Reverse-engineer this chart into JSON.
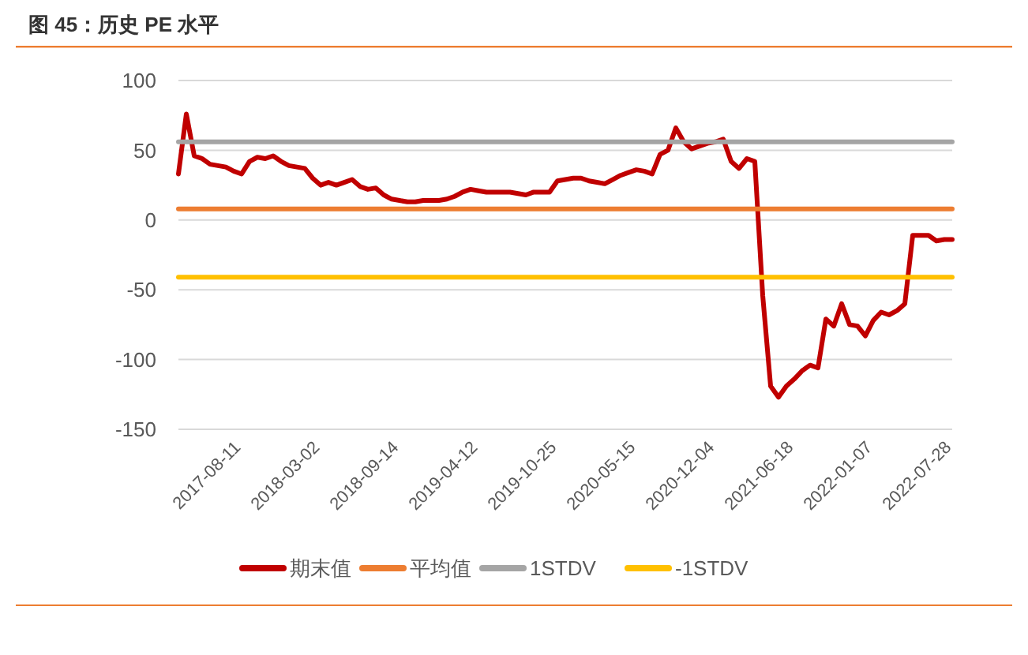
{
  "chart_data": {
    "type": "line",
    "title": "图 45：历史 PE 水平",
    "categories": [
      null,
      null,
      null,
      null,
      null,
      null,
      null,
      null,
      "2017-08-11",
      null,
      null,
      null,
      null,
      null,
      null,
      null,
      null,
      null,
      "2018-03-02",
      null,
      null,
      null,
      null,
      null,
      null,
      null,
      null,
      null,
      "2018-09-14",
      null,
      null,
      null,
      null,
      null,
      null,
      null,
      null,
      null,
      "2019-04-12",
      null,
      null,
      null,
      null,
      null,
      null,
      null,
      null,
      null,
      "2019-10-25",
      null,
      null,
      null,
      null,
      null,
      null,
      null,
      null,
      null,
      "2020-05-15",
      null,
      null,
      null,
      null,
      null,
      null,
      null,
      null,
      null,
      "2020-12-04",
      null,
      null,
      null,
      null,
      null,
      null,
      null,
      null,
      null,
      "2021-06-18",
      null,
      null,
      null,
      null,
      null,
      null,
      null,
      null,
      null,
      "2022-01-07",
      null,
      null,
      null,
      null,
      null,
      null,
      null,
      null,
      null,
      "2022-07-28"
    ],
    "series": [
      {
        "name": "期末值",
        "color": "#c00000",
        "values": [
          33,
          76,
          46,
          44,
          40,
          39,
          38,
          35,
          33,
          42,
          45,
          44,
          46,
          42,
          39,
          38,
          37,
          30,
          25,
          27,
          25,
          27,
          29,
          24,
          22,
          23,
          18,
          15,
          14,
          13,
          13,
          14,
          14,
          14,
          15,
          17,
          20,
          22,
          21,
          20,
          20,
          20,
          20,
          19,
          18,
          20,
          20,
          20,
          28,
          29,
          30,
          30,
          28,
          27,
          26,
          29,
          32,
          34,
          36,
          35,
          33,
          47,
          50,
          66,
          56,
          51,
          53,
          55,
          56,
          58,
          42,
          37,
          44,
          42,
          -54,
          -119,
          -127,
          -119,
          -114,
          -108,
          -104,
          -106,
          -71,
          -76,
          -60,
          -75,
          -76,
          -83,
          -72,
          -66,
          -68,
          -65,
          -60,
          -11,
          -11,
          -11,
          -15,
          -14,
          -14
        ]
      },
      {
        "name": "平均值",
        "color": "#ed7d31",
        "values": [
          8,
          8,
          8,
          8,
          8,
          8,
          8,
          8,
          8,
          8,
          8,
          8,
          8,
          8,
          8,
          8,
          8,
          8,
          8,
          8,
          8,
          8,
          8,
          8,
          8,
          8,
          8,
          8,
          8,
          8,
          8,
          8,
          8,
          8,
          8,
          8,
          8,
          8,
          8,
          8,
          8,
          8,
          8,
          8,
          8,
          8,
          8,
          8,
          8,
          8,
          8,
          8,
          8,
          8,
          8,
          8,
          8,
          8,
          8,
          8,
          8,
          8,
          8,
          8,
          8,
          8,
          8,
          8,
          8,
          8,
          8,
          8,
          8,
          8,
          8,
          8,
          8,
          8,
          8,
          8,
          8,
          8,
          8,
          8,
          8,
          8,
          8,
          8,
          8,
          8,
          8,
          8,
          8,
          8,
          8,
          8,
          8,
          8,
          8
        ]
      },
      {
        "name": "1STDV",
        "color": "#a5a5a5",
        "values": [
          56,
          56,
          56,
          56,
          56,
          56,
          56,
          56,
          56,
          56,
          56,
          56,
          56,
          56,
          56,
          56,
          56,
          56,
          56,
          56,
          56,
          56,
          56,
          56,
          56,
          56,
          56,
          56,
          56,
          56,
          56,
          56,
          56,
          56,
          56,
          56,
          56,
          56,
          56,
          56,
          56,
          56,
          56,
          56,
          56,
          56,
          56,
          56,
          56,
          56,
          56,
          56,
          56,
          56,
          56,
          56,
          56,
          56,
          56,
          56,
          56,
          56,
          56,
          56,
          56,
          56,
          56,
          56,
          56,
          56,
          56,
          56,
          56,
          56,
          56,
          56,
          56,
          56,
          56,
          56,
          56,
          56,
          56,
          56,
          56,
          56,
          56,
          56,
          56,
          56,
          56,
          56,
          56,
          56,
          56,
          56,
          56,
          56,
          56
        ]
      },
      {
        "name": "-1STDV",
        "color": "#ffc000",
        "values": [
          -41,
          -41,
          -41,
          -41,
          -41,
          -41,
          -41,
          -41,
          -41,
          -41,
          -41,
          -41,
          -41,
          -41,
          -41,
          -41,
          -41,
          -41,
          -41,
          -41,
          -41,
          -41,
          -41,
          -41,
          -41,
          -41,
          -41,
          -41,
          -41,
          -41,
          -41,
          -41,
          -41,
          -41,
          -41,
          -41,
          -41,
          -41,
          -41,
          -41,
          -41,
          -41,
          -41,
          -41,
          -41,
          -41,
          -41,
          -41,
          -41,
          -41,
          -41,
          -41,
          -41,
          -41,
          -41,
          -41,
          -41,
          -41,
          -41,
          -41,
          -41,
          -41,
          -41,
          -41,
          -41,
          -41,
          -41,
          -41,
          -41,
          -41,
          -41,
          -41,
          -41,
          -41,
          -41,
          -41,
          -41,
          -41,
          -41,
          -41,
          -41,
          -41,
          -41,
          -41,
          -41,
          -41,
          -41,
          -41,
          -41,
          -41,
          -41,
          -41,
          -41,
          -41,
          -41,
          -41,
          -41,
          -41,
          -41
        ]
      }
    ],
    "ylim": [
      -150,
      100
    ],
    "yticks": [
      -150,
      -100,
      -50,
      0,
      50,
      100
    ],
    "grid": "y",
    "legend": "bottom",
    "marker": "none",
    "line_style": "solid"
  }
}
